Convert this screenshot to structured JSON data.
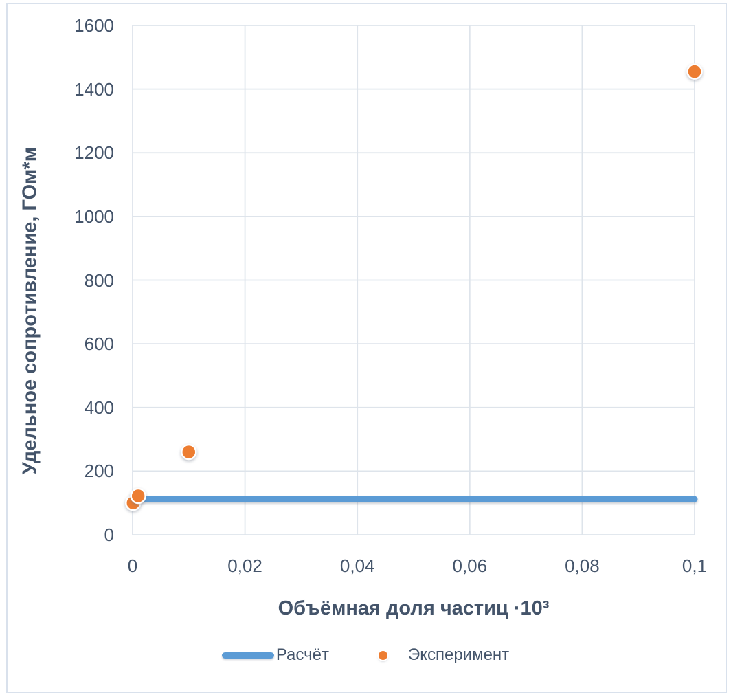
{
  "chart_data": {
    "type": "scatter",
    "title": "",
    "grid": true,
    "legend_position": "bottom",
    "text_color": "#44546A",
    "gridline_color": "#DEE4EB",
    "border_color": "#D9E1EC",
    "marker_edge_color": "#FFFFFF",
    "x_axis": {
      "label": "Объёмная доля частиц ·10³",
      "min": 0,
      "max": 0.1,
      "decimal_separator": ",",
      "ticks": [
        {
          "value": 0,
          "label": "0"
        },
        {
          "value": 0.02,
          "label": "0,02"
        },
        {
          "value": 0.04,
          "label": "0,04"
        },
        {
          "value": 0.06,
          "label": "0,06"
        },
        {
          "value": 0.08,
          "label": "0,08"
        },
        {
          "value": 0.1,
          "label": "0,1"
        }
      ]
    },
    "y_axis": {
      "label": "Удельное сопротивление, ГОм*м",
      "min": 0,
      "max": 1600,
      "ticks": [
        {
          "value": 0,
          "label": "0"
        },
        {
          "value": 200,
          "label": "200"
        },
        {
          "value": 400,
          "label": "400"
        },
        {
          "value": 600,
          "label": "600"
        },
        {
          "value": 800,
          "label": "800"
        },
        {
          "value": 1000,
          "label": "1000"
        },
        {
          "value": 1200,
          "label": "1200"
        },
        {
          "value": 1400,
          "label": "1400"
        },
        {
          "value": 1600,
          "label": "1600"
        }
      ]
    },
    "series": [
      {
        "name": "Расчёт",
        "type": "line",
        "color": "#5B9BD5",
        "points": [
          [
            0.0001,
            112
          ],
          [
            0.001,
            112
          ],
          [
            0.01,
            112
          ],
          [
            0.1,
            112
          ]
        ]
      },
      {
        "name": "Эксперимент",
        "type": "scatter",
        "color": "#ED7D31",
        "points": [
          [
            0.0001,
            100
          ],
          [
            0.001,
            122
          ],
          [
            0.01,
            260
          ],
          [
            0.1,
            1455
          ]
        ]
      }
    ]
  }
}
